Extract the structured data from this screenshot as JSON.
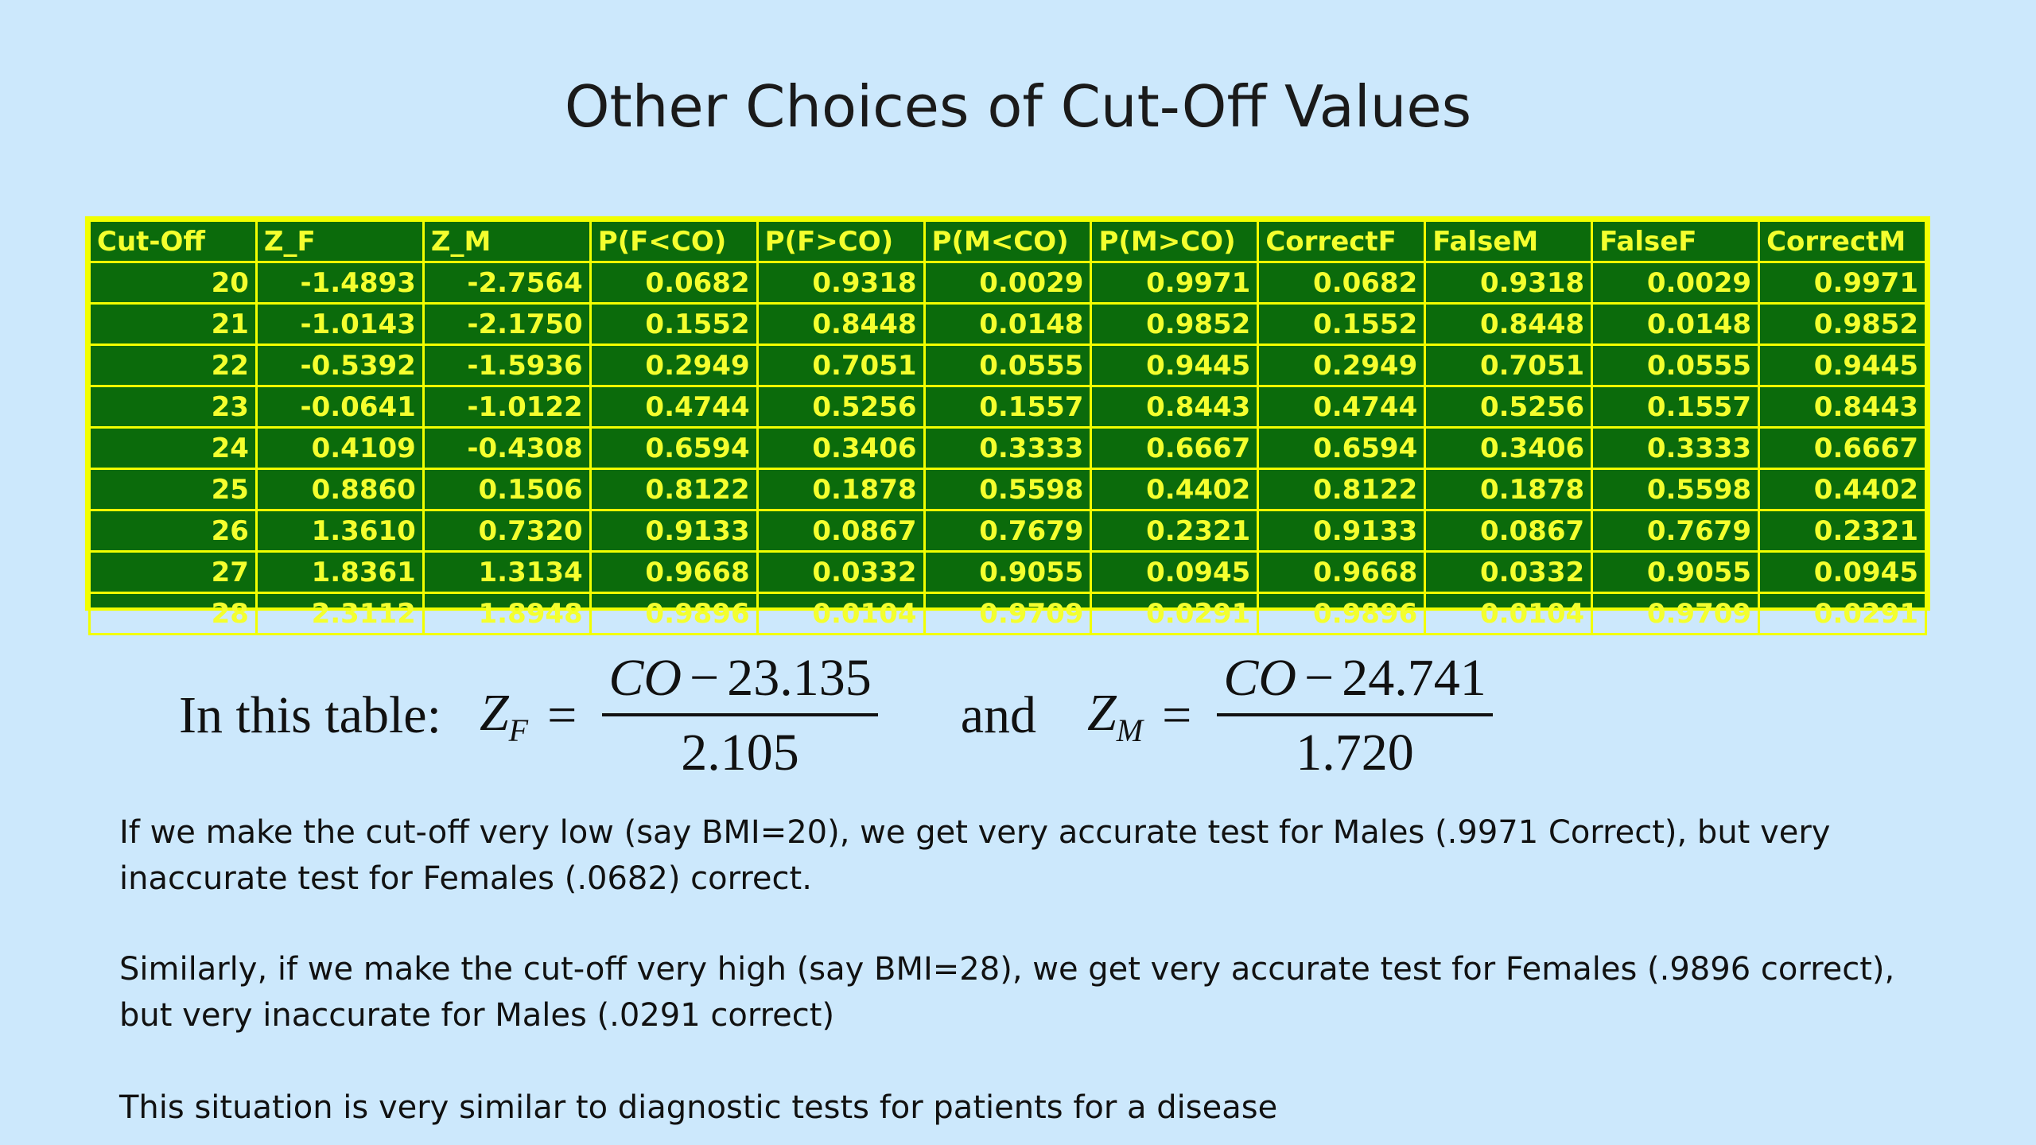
{
  "slide": {
    "title": "Other Choices of Cut-Off Values"
  },
  "table": {
    "headers": [
      "Cut-Off",
      "Z_F",
      "Z_M",
      "P(F<CO)",
      "P(F>CO)",
      "P(M<CO)",
      "P(M>CO)",
      "CorrectF",
      "FalseM",
      "FalseF",
      "CorrectM"
    ],
    "rows": [
      [
        "20",
        "-1.4893",
        "-2.7564",
        "0.0682",
        "0.9318",
        "0.0029",
        "0.9971",
        "0.0682",
        "0.9318",
        "0.0029",
        "0.9971"
      ],
      [
        "21",
        "-1.0143",
        "-2.1750",
        "0.1552",
        "0.8448",
        "0.0148",
        "0.9852",
        "0.1552",
        "0.8448",
        "0.0148",
        "0.9852"
      ],
      [
        "22",
        "-0.5392",
        "-1.5936",
        "0.2949",
        "0.7051",
        "0.0555",
        "0.9445",
        "0.2949",
        "0.7051",
        "0.0555",
        "0.9445"
      ],
      [
        "23",
        "-0.0641",
        "-1.0122",
        "0.4744",
        "0.5256",
        "0.1557",
        "0.8443",
        "0.4744",
        "0.5256",
        "0.1557",
        "0.8443"
      ],
      [
        "24",
        "0.4109",
        "-0.4308",
        "0.6594",
        "0.3406",
        "0.3333",
        "0.6667",
        "0.6594",
        "0.3406",
        "0.3333",
        "0.6667"
      ],
      [
        "25",
        "0.8860",
        "0.1506",
        "0.8122",
        "0.1878",
        "0.5598",
        "0.4402",
        "0.8122",
        "0.1878",
        "0.5598",
        "0.4402"
      ],
      [
        "26",
        "1.3610",
        "0.7320",
        "0.9133",
        "0.0867",
        "0.7679",
        "0.2321",
        "0.9133",
        "0.0867",
        "0.7679",
        "0.2321"
      ],
      [
        "27",
        "1.8361",
        "1.3134",
        "0.9668",
        "0.0332",
        "0.9055",
        "0.0945",
        "0.9668",
        "0.0332",
        "0.9055",
        "0.0945"
      ],
      [
        "28",
        "2.3112",
        "1.8948",
        "0.9896",
        "0.0104",
        "0.9709",
        "0.0291",
        "0.9896",
        "0.0104",
        "0.9709",
        "0.0291"
      ]
    ]
  },
  "formula": {
    "lead": "In this table:",
    "zf_var": "Z",
    "zf_sub": "F",
    "eq": "=",
    "zf_num_var": "CO",
    "minus": "−",
    "zf_num_const": "23.135",
    "zf_den": "2.105",
    "and": "and",
    "zm_var": "Z",
    "zm_sub": "M",
    "zm_num_var": "CO",
    "zm_num_const": "24.741",
    "zm_den": "1.720"
  },
  "paragraphs": {
    "p1": "If we make the cut-off very low (say BMI=20), we get very accurate test for Males (.9971 Correct), but very inaccurate test for Females (.0682) correct.",
    "p2": "Similarly, if we make the cut-off very high (say BMI=28), we get very accurate test for Females (.9896 correct), but very inaccurate for Males (.0291 correct)",
    "p3": "This situation is very similar to diagnostic tests for patients for a disease"
  },
  "colors": {
    "background": "#cce8fc",
    "table_fill": "#0b6b0b",
    "table_text": "#f4ff2e",
    "table_border": "#f2ff00"
  }
}
